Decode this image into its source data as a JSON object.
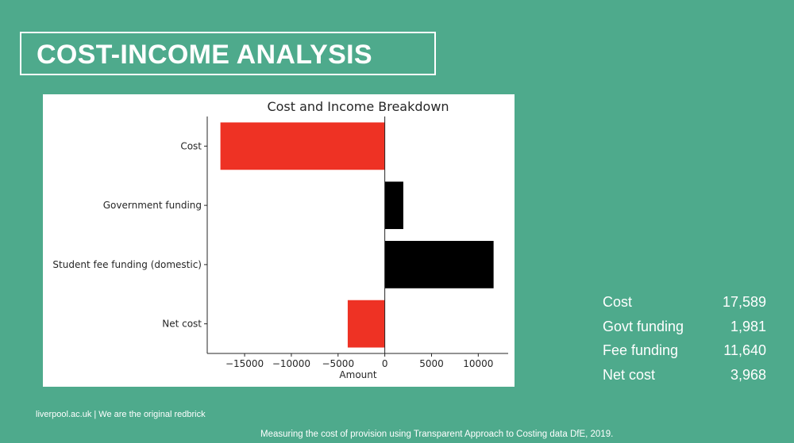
{
  "header": {
    "title": "COST-INCOME ANALYSIS"
  },
  "chart_data": {
    "type": "bar",
    "orientation": "horizontal",
    "title": "Cost and Income Breakdown",
    "xlabel": "Amount",
    "ylabel": "",
    "categories": [
      "Cost",
      "Government funding",
      "Student fee funding (domestic)",
      "Net cost"
    ],
    "values": [
      -17589,
      1981,
      11640,
      -3968
    ],
    "colors": [
      "#ee3224",
      "#000000",
      "#000000",
      "#ee3224"
    ],
    "xlim": [
      -19000,
      13200
    ],
    "xticks": [
      -15000,
      -10000,
      -5000,
      0,
      5000,
      10000
    ],
    "xtick_labels": [
      "−15000",
      "−10000",
      "−5000",
      "0",
      "5000",
      "10000"
    ],
    "grid": false,
    "zero_line": true
  },
  "summary": {
    "rows": [
      {
        "label": "Cost",
        "value": "17,589"
      },
      {
        "label": "Govt funding",
        "value": "1,981"
      },
      {
        "label": "Fee funding",
        "value": "11,640"
      },
      {
        "label": "Net cost",
        "value": "3,968"
      }
    ]
  },
  "footer": {
    "site": "liverpool.ac.uk | We are the original redbrick",
    "source": "Measuring the cost of provision using Transparent Approach to Costing data DfE, 2019."
  },
  "colors": {
    "background": "#4eaa8c",
    "cost": "#ee3224",
    "income": "#000000"
  }
}
